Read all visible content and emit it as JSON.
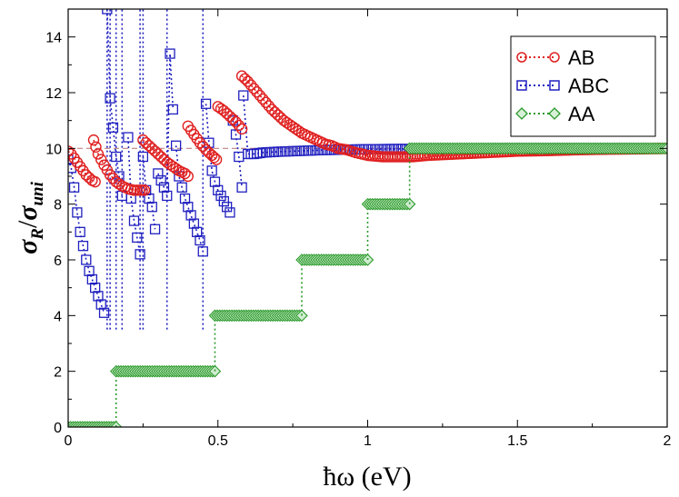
{
  "chart_data": {
    "type": "scatter",
    "xlabel": "ħω (eV)",
    "ylabel_main": "σ",
    "ylabel_main_sub": "R",
    "ylabel_sep": "/",
    "ylabel_denom": "σ",
    "ylabel_denom_sub": "uni",
    "xlim": [
      0,
      2
    ],
    "ylim": [
      0,
      15
    ],
    "xticks": [
      0,
      0.5,
      1,
      1.5,
      2
    ],
    "xtick_labels": [
      "0",
      "0.5",
      "1",
      "1.5",
      "2"
    ],
    "yticks": [
      0,
      2,
      4,
      6,
      8,
      10,
      12,
      14
    ],
    "ytick_labels": [
      "0",
      "2",
      "4",
      "6",
      "8",
      "10",
      "12",
      "14"
    ],
    "reference_line_y": 10,
    "legend_position": "top-right",
    "series": [
      {
        "name": "AB",
        "marker": "circle",
        "color": "#e02020",
        "branches": [
          {
            "x": [
              0.0,
              0.01,
              0.02,
              0.03,
              0.04,
              0.05,
              0.06,
              0.07,
              0.08,
              0.09
            ],
            "y": [
              9.9,
              9.8,
              9.65,
              9.5,
              9.35,
              9.2,
              9.05,
              8.95,
              8.85,
              8.8
            ]
          },
          {
            "x": [
              0.085,
              0.1,
              0.12,
              0.14,
              0.16,
              0.18,
              0.2,
              0.22,
              0.24,
              0.255
            ],
            "y": [
              10.3,
              9.8,
              9.4,
              9.05,
              8.8,
              8.65,
              8.55,
              8.5,
              8.5,
              8.5
            ]
          },
          {
            "x": [
              0.25,
              0.27,
              0.29,
              0.31,
              0.33,
              0.35,
              0.37,
              0.39,
              0.4
            ],
            "y": [
              10.3,
              10.1,
              9.9,
              9.7,
              9.5,
              9.35,
              9.2,
              9.1,
              9.0
            ]
          },
          {
            "x": [
              0.4,
              0.42,
              0.44,
              0.46,
              0.48,
              0.495
            ],
            "y": [
              10.8,
              10.5,
              10.2,
              9.95,
              9.75,
              9.6
            ]
          },
          {
            "x": [
              0.5,
              0.52,
              0.54,
              0.56,
              0.58
            ],
            "y": [
              11.5,
              11.35,
              11.15,
              10.95,
              10.7
            ]
          },
          {
            "x": [
              0.58,
              0.6,
              0.62,
              0.64,
              0.66,
              0.68,
              0.7,
              0.72,
              0.74,
              0.76,
              0.78,
              0.8,
              0.82,
              0.84,
              0.86,
              0.88,
              0.9,
              0.93,
              0.96,
              1.0,
              1.05,
              1.1,
              1.15,
              1.2,
              1.3,
              1.4,
              1.5,
              1.6,
              1.7,
              1.8,
              1.9,
              2.0
            ],
            "y": [
              12.6,
              12.4,
              12.15,
              11.9,
              11.65,
              11.4,
              11.2,
              11.0,
              10.85,
              10.7,
              10.55,
              10.45,
              10.35,
              10.25,
              10.15,
              10.1,
              10.0,
              9.95,
              9.85,
              9.75,
              9.7,
              9.7,
              9.7,
              9.75,
              9.8,
              9.85,
              9.9,
              9.92,
              9.95,
              9.97,
              9.98,
              10.0
            ]
          }
        ]
      },
      {
        "name": "ABC",
        "marker": "square",
        "color": "#2020c0",
        "branches": [
          {
            "x": [
              0.0,
              0.01,
              0.02,
              0.03,
              0.04,
              0.05,
              0.06,
              0.07,
              0.08,
              0.09,
              0.1,
              0.11,
              0.12
            ],
            "y": [
              9.6,
              9.3,
              8.6,
              7.7,
              7.0,
              6.5,
              6.0,
              5.6,
              5.3,
              5.0,
              4.7,
              4.4,
              4.1
            ]
          },
          {
            "x": [
              0.12,
              0.13,
              0.14,
              0.16,
              0.18
            ],
            "y": [
              15.5,
              15.0,
              11.8,
              9.7,
              8.3
            ]
          },
          {
            "x": [
              0.2,
              0.21,
              0.22,
              0.23,
              0.24
            ],
            "y": [
              10.4,
              8.2,
              7.4,
              6.8,
              6.2
            ]
          },
          {
            "x": [
              0.25,
              0.26,
              0.28,
              0.29
            ],
            "y": [
              9.7,
              8.5,
              7.9,
              7.1
            ]
          },
          {
            "x": [
              0.3,
              0.32,
              0.33,
              0.34,
              0.35
            ],
            "y": [
              9.1,
              8.6,
              8.3,
              13.4,
              11.4
            ]
          },
          {
            "x": [
              0.36,
              0.37,
              0.38,
              0.39,
              0.4,
              0.41,
              0.42,
              0.43,
              0.44,
              0.45
            ],
            "y": [
              10.1,
              9.0,
              8.6,
              8.2,
              7.9,
              7.6,
              7.3,
              7.0,
              6.7,
              6.3
            ]
          },
          {
            "x": [
              0.46,
              0.47,
              0.48,
              0.49,
              0.5,
              0.51,
              0.52,
              0.53,
              0.54
            ],
            "y": [
              11.6,
              10.2,
              9.2,
              8.8,
              8.5,
              8.3,
              8.1,
              7.9,
              7.7
            ]
          },
          {
            "x": [
              0.55,
              0.56,
              0.57,
              0.58
            ],
            "y": [
              11.0,
              10.5,
              9.7,
              8.6
            ]
          },
          {
            "x": [
              0.585,
              0.6,
              0.62,
              0.65,
              0.7,
              0.75,
              0.8,
              0.85,
              0.9,
              0.95,
              1.0,
              1.1,
              1.2,
              1.3,
              1.4,
              1.5,
              1.6,
              1.7,
              1.8,
              1.9,
              2.0
            ],
            "y": [
              11.9,
              9.8,
              9.8,
              9.85,
              9.88,
              9.9,
              9.92,
              9.94,
              9.95,
              9.96,
              9.97,
              9.98,
              9.98,
              9.99,
              9.99,
              10.0,
              10.0,
              10.0,
              10.0,
              10.0,
              10.0
            ]
          }
        ],
        "divergence_x": [
          0.13,
          0.14,
          0.16,
          0.18,
          0.24,
          0.25,
          0.33,
          0.45
        ]
      },
      {
        "name": "AA",
        "marker": "diamond",
        "color": "#2a9a2a",
        "steps": [
          {
            "x0": 0.0,
            "x1": 0.16,
            "y": 0
          },
          {
            "x0": 0.16,
            "x1": 0.49,
            "y": 2
          },
          {
            "x0": 0.49,
            "x1": 0.78,
            "y": 4
          },
          {
            "x0": 0.78,
            "x1": 1.0,
            "y": 6
          },
          {
            "x0": 1.0,
            "x1": 1.14,
            "y": 8
          },
          {
            "x0": 1.14,
            "x1": 2.0,
            "y": 10
          }
        ]
      }
    ]
  },
  "colors": {
    "reference_line": "#c08080"
  }
}
